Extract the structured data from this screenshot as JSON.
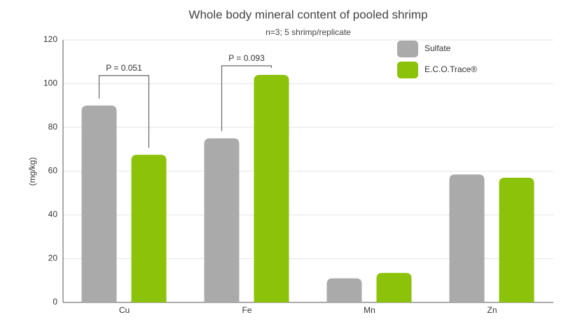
{
  "chart_data": {
    "type": "bar",
    "title": "Whole body mineral content of pooled shrimp",
    "subtitle": "n=3; 5 shrimp/replicate",
    "y_label": "(mg/kg)",
    "categories": [
      "Cu",
      "Fe",
      "Mn",
      "Zn"
    ],
    "series": [
      {
        "name": "Sulfate",
        "color": "#aaaaaa",
        "values": [
          90,
          75,
          11,
          58.5
        ]
      },
      {
        "name": "E.C.O.Trace®",
        "color": "#8cc20a",
        "values": [
          67.5,
          104,
          13.5,
          57
        ]
      }
    ],
    "p_labels": [
      "P = 0.051",
      "P = 0.093",
      null,
      null
    ],
    "ylim": [
      0,
      120
    ],
    "yticks": [
      0,
      20,
      40,
      60,
      80,
      100,
      120
    ],
    "grid": true,
    "legend": "top-right"
  }
}
